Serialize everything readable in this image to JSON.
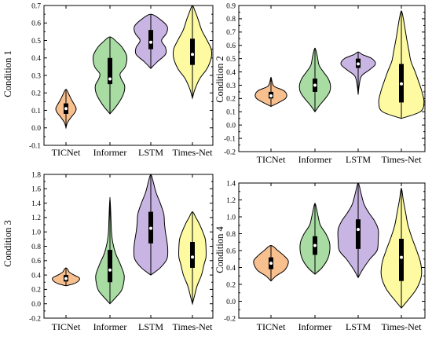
{
  "chart_data": [
    {
      "type": "violin",
      "ylabel": "Condition 1",
      "ylim": [
        -0.1,
        0.7
      ],
      "yticks": [
        "-0.1",
        "0.0",
        "0.1",
        "0.2",
        "0.3",
        "0.4",
        "0.5",
        "0.6",
        "0.7"
      ],
      "categories": [
        "TICNet",
        "Informer",
        "LSTM",
        "Times-Net"
      ],
      "series": [
        {
          "color": "#f9c08f",
          "min": 0.0,
          "q1": 0.08,
          "median": 0.11,
          "q3": 0.14,
          "max": 0.22,
          "density": [
            [
              0.0,
              0.0
            ],
            [
              0.03,
              0.15
            ],
            [
              0.06,
              0.5
            ],
            [
              0.09,
              0.9
            ],
            [
              0.11,
              1.0
            ],
            [
              0.13,
              0.85
            ],
            [
              0.16,
              0.55
            ],
            [
              0.19,
              0.3
            ],
            [
              0.22,
              0.0
            ]
          ]
        },
        {
          "color": "#a8dca3",
          "min": 0.08,
          "q1": 0.25,
          "median": 0.28,
          "q3": 0.4,
          "max": 0.52,
          "density": [
            [
              0.08,
              0.0
            ],
            [
              0.13,
              0.35
            ],
            [
              0.19,
              0.65
            ],
            [
              0.24,
              0.72
            ],
            [
              0.28,
              0.55
            ],
            [
              0.31,
              0.5
            ],
            [
              0.35,
              0.75
            ],
            [
              0.41,
              0.82
            ],
            [
              0.46,
              0.6
            ],
            [
              0.49,
              0.35
            ],
            [
              0.52,
              0.0
            ]
          ]
        },
        {
          "color": "#c8b5e3",
          "min": 0.34,
          "q1": 0.45,
          "median": 0.49,
          "q3": 0.56,
          "max": 0.65,
          "density": [
            [
              0.34,
              0.0
            ],
            [
              0.38,
              0.4
            ],
            [
              0.42,
              0.85
            ],
            [
              0.46,
              0.85
            ],
            [
              0.5,
              0.62
            ],
            [
              0.54,
              0.9
            ],
            [
              0.58,
              0.95
            ],
            [
              0.62,
              0.55
            ],
            [
              0.65,
              0.0
            ]
          ]
        },
        {
          "color": "#fdfaa1",
          "min": 0.17,
          "q1": 0.36,
          "median": 0.42,
          "q3": 0.51,
          "max": 0.7,
          "density": [
            [
              0.17,
              0.0
            ],
            [
              0.22,
              0.12
            ],
            [
              0.28,
              0.35
            ],
            [
              0.34,
              0.72
            ],
            [
              0.4,
              0.92
            ],
            [
              0.45,
              0.92
            ],
            [
              0.5,
              0.72
            ],
            [
              0.56,
              0.45
            ],
            [
              0.62,
              0.28
            ],
            [
              0.67,
              0.12
            ],
            [
              0.7,
              0.0
            ]
          ]
        }
      ]
    },
    {
      "type": "violin",
      "ylabel": "Condition 2",
      "ylim": [
        -0.2,
        0.9
      ],
      "yticks": [
        "-0.2",
        "-0.1",
        "0.0",
        "0.1",
        "0.2",
        "0.3",
        "0.4",
        "0.5",
        "0.6",
        "0.7",
        "0.8",
        "0.9"
      ],
      "categories": [
        "TICNet",
        "Informer",
        "LSTM",
        "Times-Net"
      ],
      "series": [
        {
          "color": "#f9c08f",
          "min": 0.14,
          "q1": 0.2,
          "median": 0.22,
          "q3": 0.25,
          "max": 0.36,
          "density": [
            [
              0.14,
              0.0
            ],
            [
              0.17,
              0.5
            ],
            [
              0.2,
              0.92
            ],
            [
              0.23,
              1.0
            ],
            [
              0.26,
              0.8
            ],
            [
              0.29,
              0.22
            ],
            [
              0.32,
              0.08
            ],
            [
              0.36,
              0.0
            ]
          ]
        },
        {
          "color": "#a8dca3",
          "min": 0.1,
          "q1": 0.25,
          "median": 0.3,
          "q3": 0.35,
          "max": 0.58,
          "density": [
            [
              0.1,
              0.0
            ],
            [
              0.15,
              0.25
            ],
            [
              0.2,
              0.55
            ],
            [
              0.25,
              0.78
            ],
            [
              0.3,
              0.82
            ],
            [
              0.35,
              0.7
            ],
            [
              0.4,
              0.45
            ],
            [
              0.45,
              0.22
            ],
            [
              0.52,
              0.12
            ],
            [
              0.58,
              0.0
            ]
          ]
        },
        {
          "color": "#c8b5e3",
          "min": 0.23,
          "q1": 0.43,
          "median": 0.46,
          "q3": 0.5,
          "max": 0.55,
          "density": [
            [
              0.23,
              0.0
            ],
            [
              0.3,
              0.06
            ],
            [
              0.37,
              0.2
            ],
            [
              0.42,
              0.7
            ],
            [
              0.46,
              1.0
            ],
            [
              0.5,
              0.8
            ],
            [
              0.53,
              0.25
            ],
            [
              0.55,
              0.0
            ]
          ]
        },
        {
          "color": "#fdfaa1",
          "min": 0.05,
          "q1": 0.17,
          "median": 0.31,
          "q3": 0.46,
          "max": 0.86,
          "density": [
            [
              0.05,
              0.0
            ],
            [
              0.1,
              0.75
            ],
            [
              0.17,
              0.9
            ],
            [
              0.25,
              0.82
            ],
            [
              0.32,
              0.7
            ],
            [
              0.4,
              0.55
            ],
            [
              0.48,
              0.38
            ],
            [
              0.56,
              0.3
            ],
            [
              0.64,
              0.22
            ],
            [
              0.72,
              0.15
            ],
            [
              0.8,
              0.08
            ],
            [
              0.86,
              0.0
            ]
          ]
        }
      ]
    },
    {
      "type": "violin",
      "ylabel": "Condition 3",
      "ylim": [
        -0.2,
        1.8
      ],
      "yticks": [
        "-0.2",
        "0.0",
        "0.2",
        "0.4",
        "0.6",
        "0.8",
        "1.0",
        "1.2",
        "1.4",
        "1.6",
        "1.8"
      ],
      "categories": [
        "TICNet",
        "Informer",
        "LSTM",
        "Times-Net"
      ],
      "series": [
        {
          "color": "#f9c08f",
          "min": 0.25,
          "q1": 0.31,
          "median": 0.35,
          "q3": 0.4,
          "max": 0.5,
          "density": [
            [
              0.25,
              0.0
            ],
            [
              0.28,
              0.6
            ],
            [
              0.32,
              0.95
            ],
            [
              0.36,
              1.0
            ],
            [
              0.4,
              0.6
            ],
            [
              0.44,
              0.25
            ],
            [
              0.48,
              0.12
            ],
            [
              0.5,
              0.0
            ]
          ]
        },
        {
          "color": "#a8dca3",
          "min": 0.0,
          "q1": 0.3,
          "median": 0.47,
          "q3": 0.75,
          "max": 1.48,
          "density": [
            [
              0.0,
              0.0
            ],
            [
              0.08,
              0.28
            ],
            [
              0.18,
              0.6
            ],
            [
              0.28,
              0.72
            ],
            [
              0.4,
              0.75
            ],
            [
              0.55,
              0.55
            ],
            [
              0.7,
              0.3
            ],
            [
              0.85,
              0.15
            ],
            [
              1.0,
              0.08
            ],
            [
              1.2,
              0.05
            ],
            [
              1.48,
              0.0
            ]
          ]
        },
        {
          "color": "#c8b5e3",
          "min": 0.4,
          "q1": 0.84,
          "median": 1.05,
          "q3": 1.28,
          "max": 1.8,
          "density": [
            [
              0.4,
              0.0
            ],
            [
              0.5,
              0.4
            ],
            [
              0.62,
              0.68
            ],
            [
              0.75,
              0.72
            ],
            [
              0.88,
              0.68
            ],
            [
              1.0,
              0.62
            ],
            [
              1.12,
              0.58
            ],
            [
              1.25,
              0.55
            ],
            [
              1.4,
              0.4
            ],
            [
              1.55,
              0.22
            ],
            [
              1.7,
              0.1
            ],
            [
              1.8,
              0.0
            ]
          ]
        },
        {
          "color": "#fdfaa1",
          "min": 0.0,
          "q1": 0.5,
          "median": 0.65,
          "q3": 0.86,
          "max": 1.28,
          "density": [
            [
              0.0,
              0.0
            ],
            [
              0.1,
              0.1
            ],
            [
              0.25,
              0.25
            ],
            [
              0.4,
              0.48
            ],
            [
              0.55,
              0.62
            ],
            [
              0.65,
              0.72
            ],
            [
              0.78,
              0.72
            ],
            [
              0.9,
              0.68
            ],
            [
              1.0,
              0.55
            ],
            [
              1.12,
              0.35
            ],
            [
              1.2,
              0.18
            ],
            [
              1.28,
              0.0
            ]
          ]
        }
      ]
    },
    {
      "type": "violin",
      "ylabel": "Condition 4",
      "ylim": [
        -0.2,
        1.4
      ],
      "yticks": [
        "-0.2",
        "0.0",
        "0.2",
        "0.4",
        "0.6",
        "0.8",
        "1.0",
        "1.2",
        "1.4"
      ],
      "categories": [
        "TICNet",
        "Informer",
        "LSTM",
        "Times-Net"
      ],
      "series": [
        {
          "color": "#f9c08f",
          "min": 0.24,
          "q1": 0.38,
          "median": 0.45,
          "q3": 0.52,
          "max": 0.66,
          "density": [
            [
              0.24,
              0.0
            ],
            [
              0.3,
              0.3
            ],
            [
              0.36,
              0.75
            ],
            [
              0.42,
              0.95
            ],
            [
              0.48,
              1.0
            ],
            [
              0.54,
              0.75
            ],
            [
              0.6,
              0.4
            ],
            [
              0.66,
              0.0
            ]
          ]
        },
        {
          "color": "#a8dca3",
          "min": 0.32,
          "q1": 0.55,
          "median": 0.66,
          "q3": 0.77,
          "max": 1.16,
          "density": [
            [
              0.32,
              0.0
            ],
            [
              0.4,
              0.4
            ],
            [
              0.5,
              0.7
            ],
            [
              0.6,
              0.82
            ],
            [
              0.7,
              0.8
            ],
            [
              0.8,
              0.6
            ],
            [
              0.9,
              0.3
            ],
            [
              1.0,
              0.18
            ],
            [
              1.1,
              0.08
            ],
            [
              1.16,
              0.0
            ]
          ]
        },
        {
          "color": "#c8b5e3",
          "min": 0.28,
          "q1": 0.62,
          "median": 0.85,
          "q3": 0.97,
          "max": 1.4,
          "density": [
            [
              0.28,
              0.0
            ],
            [
              0.38,
              0.2
            ],
            [
              0.5,
              0.5
            ],
            [
              0.6,
              0.8
            ],
            [
              0.72,
              0.85
            ],
            [
              0.85,
              0.85
            ],
            [
              0.95,
              0.7
            ],
            [
              1.05,
              0.45
            ],
            [
              1.15,
              0.25
            ],
            [
              1.28,
              0.12
            ],
            [
              1.4,
              0.0
            ]
          ]
        },
        {
          "color": "#fdfaa1",
          "min": -0.08,
          "q1": 0.24,
          "median": 0.52,
          "q3": 0.74,
          "max": 1.34,
          "density": [
            [
              -0.08,
              0.0
            ],
            [
              0.02,
              0.3
            ],
            [
              0.15,
              0.65
            ],
            [
              0.3,
              0.85
            ],
            [
              0.45,
              0.82
            ],
            [
              0.6,
              0.65
            ],
            [
              0.75,
              0.45
            ],
            [
              0.9,
              0.28
            ],
            [
              1.05,
              0.18
            ],
            [
              1.2,
              0.08
            ],
            [
              1.34,
              0.0
            ]
          ]
        }
      ]
    }
  ]
}
